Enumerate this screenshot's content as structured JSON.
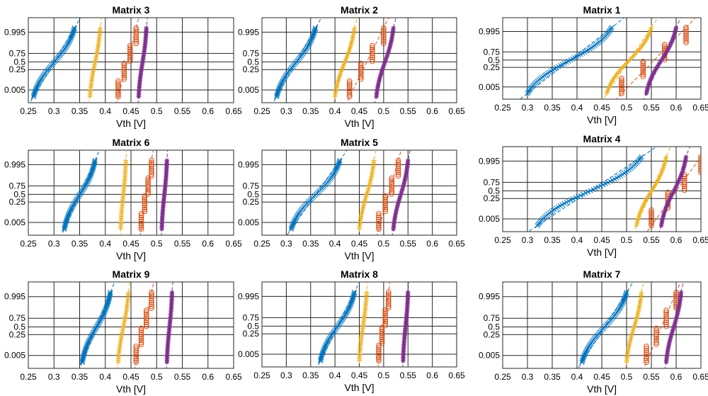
{
  "figure": {
    "xlabel": "Vth [V]"
  },
  "colors": {
    "blue": "#0072BD",
    "yellow": "#EDB120",
    "orange": "#D95319",
    "purple": "#7E2F8E"
  },
  "xticks": [
    "0.25",
    "0.3",
    "0.35",
    "0.4",
    "0.45",
    "0.5",
    "0.55",
    "0.6",
    "0.65"
  ],
  "yticks": [
    "0.995",
    "0.75",
    "0.5",
    "0.25",
    "0.005"
  ],
  "chart_data": [
    {
      "type": "scatter",
      "title": "Matrix 3",
      "xlabel": "Vth [V]",
      "xlim": [
        0.25,
        0.65
      ],
      "series": [
        {
          "marker": "x",
          "color": "blue",
          "x_range": [
            0.26,
            0.34
          ],
          "shape": "s"
        },
        {
          "marker": "+",
          "color": "yellow",
          "x_range": [
            0.37,
            0.39
          ],
          "shape": "s"
        },
        {
          "marker": "o",
          "color": "orange",
          "x_range": [
            0.425,
            0.46
          ],
          "shape": "step"
        },
        {
          "marker": "*",
          "color": "purple",
          "x_range": [
            0.465,
            0.48
          ],
          "shape": "s"
        }
      ]
    },
    {
      "type": "scatter",
      "title": "Matrix 2",
      "xlabel": "Vth [V]",
      "xlim": [
        0.25,
        0.65
      ],
      "series": [
        {
          "marker": "x",
          "color": "blue",
          "x_range": [
            0.28,
            0.36
          ],
          "shape": "s"
        },
        {
          "marker": "+",
          "color": "yellow",
          "x_range": [
            0.4,
            0.44
          ],
          "shape": "s"
        },
        {
          "marker": "o",
          "color": "orange",
          "x_range": [
            0.43,
            0.5
          ],
          "shape": "step"
        },
        {
          "marker": "*",
          "color": "purple",
          "x_range": [
            0.485,
            0.52
          ],
          "shape": "s"
        }
      ]
    },
    {
      "type": "scatter",
      "title": "Matrix 1",
      "xlabel": "Vth [V]",
      "xlim": [
        0.25,
        0.65
      ],
      "series": [
        {
          "marker": "x",
          "color": "blue",
          "x_range": [
            0.3,
            0.47
          ],
          "shape": "s"
        },
        {
          "marker": "+",
          "color": "yellow",
          "x_range": [
            0.46,
            0.55
          ],
          "shape": "s"
        },
        {
          "marker": "o",
          "color": "orange",
          "x_range": [
            0.49,
            0.62
          ],
          "shape": "step"
        },
        {
          "marker": "*",
          "color": "purple",
          "x_range": [
            0.54,
            0.6
          ],
          "shape": "s"
        }
      ]
    },
    {
      "type": "scatter",
      "title": "Matrix 6",
      "xlabel": "Vth [V]",
      "xlim": [
        0.25,
        0.65
      ],
      "series": [
        {
          "marker": "x",
          "color": "blue",
          "x_range": [
            0.32,
            0.38
          ],
          "shape": "s"
        },
        {
          "marker": "+",
          "color": "yellow",
          "x_range": [
            0.43,
            0.44
          ],
          "shape": "s"
        },
        {
          "marker": "o",
          "color": "orange",
          "x_range": [
            0.47,
            0.49
          ],
          "shape": "step"
        },
        {
          "marker": "*",
          "color": "purple",
          "x_range": [
            0.51,
            0.52
          ],
          "shape": "s"
        }
      ]
    },
    {
      "type": "scatter",
      "title": "Matrix 5",
      "xlabel": "Vth [V]",
      "xlim": [
        0.25,
        0.65
      ],
      "series": [
        {
          "marker": "x",
          "color": "blue",
          "x_range": [
            0.31,
            0.41
          ],
          "shape": "s"
        },
        {
          "marker": "+",
          "color": "yellow",
          "x_range": [
            0.45,
            0.48
          ],
          "shape": "s"
        },
        {
          "marker": "o",
          "color": "orange",
          "x_range": [
            0.49,
            0.53
          ],
          "shape": "step"
        },
        {
          "marker": "*",
          "color": "purple",
          "x_range": [
            0.52,
            0.55
          ],
          "shape": "s"
        }
      ]
    },
    {
      "type": "scatter",
      "title": "Matrix 4",
      "xlabel": "Vth [V]",
      "xlim": [
        0.25,
        0.65
      ],
      "series": [
        {
          "marker": "x",
          "color": "blue",
          "x_range": [
            0.32,
            0.53
          ],
          "shape": "s"
        },
        {
          "marker": "+",
          "color": "yellow",
          "x_range": [
            0.52,
            0.58
          ],
          "shape": "s"
        },
        {
          "marker": "o",
          "color": "orange",
          "x_range": [
            0.55,
            0.65
          ],
          "shape": "step"
        },
        {
          "marker": "*",
          "color": "purple",
          "x_range": [
            0.57,
            0.62
          ],
          "shape": "s"
        }
      ]
    },
    {
      "type": "scatter",
      "title": "Matrix 9",
      "xlabel": "Vth [V]",
      "xlim": [
        0.25,
        0.65
      ],
      "series": [
        {
          "marker": "x",
          "color": "blue",
          "x_range": [
            0.355,
            0.41
          ],
          "shape": "s"
        },
        {
          "marker": "+",
          "color": "yellow",
          "x_range": [
            0.425,
            0.445
          ],
          "shape": "s"
        },
        {
          "marker": "o",
          "color": "orange",
          "x_range": [
            0.46,
            0.49
          ],
          "shape": "step"
        },
        {
          "marker": "*",
          "color": "purple",
          "x_range": [
            0.52,
            0.53
          ],
          "shape": "s"
        }
      ]
    },
    {
      "type": "scatter",
      "title": "Matrix 8",
      "xlabel": "Vth [V]",
      "xlim": [
        0.25,
        0.65
      ],
      "series": [
        {
          "marker": "x",
          "color": "blue",
          "x_range": [
            0.37,
            0.44
          ],
          "shape": "s"
        },
        {
          "marker": "+",
          "color": "yellow",
          "x_range": [
            0.45,
            0.465
          ],
          "shape": "s"
        },
        {
          "marker": "o",
          "color": "orange",
          "x_range": [
            0.49,
            0.51
          ],
          "shape": "step"
        },
        {
          "marker": "*",
          "color": "purple",
          "x_range": [
            0.54,
            0.55
          ],
          "shape": "s"
        }
      ]
    },
    {
      "type": "scatter",
      "title": "Matrix 7",
      "xlabel": "Vth [V]",
      "xlim": [
        0.25,
        0.65
      ],
      "series": [
        {
          "marker": "x",
          "color": "blue",
          "x_range": [
            0.41,
            0.5
          ],
          "shape": "s"
        },
        {
          "marker": "+",
          "color": "yellow",
          "x_range": [
            0.5,
            0.53
          ],
          "shape": "s"
        },
        {
          "marker": "o",
          "color": "orange",
          "x_range": [
            0.54,
            0.6
          ],
          "shape": "step"
        },
        {
          "marker": "*",
          "color": "purple",
          "x_range": [
            0.58,
            0.61
          ],
          "shape": "s"
        }
      ]
    }
  ]
}
